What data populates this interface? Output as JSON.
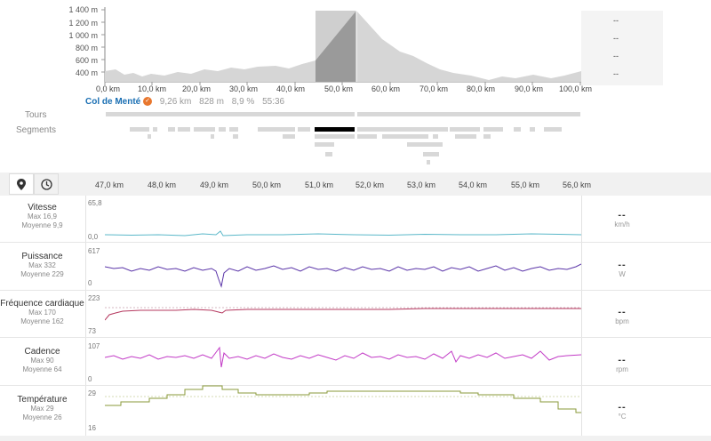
{
  "elevation": {
    "y_ticks": [
      "1 400 m",
      "1 200 m",
      "1 000 m",
      "800 m",
      "600 m",
      "400 m"
    ],
    "x_ticks": [
      "0,0 km",
      "10,0 km",
      "20,0 km",
      "30,0 km",
      "40,0 km",
      "50,0 km",
      "60,0 km",
      "70,0 km",
      "80,0 km",
      "90,0 km",
      "100,0 km"
    ],
    "side_values": [
      "--",
      "--",
      "--",
      "--"
    ]
  },
  "segment_info": {
    "name": "Col de Menté",
    "distance": "9,26 km",
    "elevation": "828 m",
    "grade": "8,9 %",
    "time": "55:36"
  },
  "rows": {
    "tours": "Tours",
    "segments": "Segments"
  },
  "toolbar": {
    "pin_icon": "map-pin-icon",
    "clock_icon": "clock-icon"
  },
  "zoom_axis": [
    "47,0 km",
    "48,0 km",
    "49,0 km",
    "50,0 km",
    "51,0 km",
    "52,0 km",
    "53,0 km",
    "54,0 km",
    "55,0 km",
    "56,0 km"
  ],
  "panels": [
    {
      "name": "Vitesse",
      "max": "Max 16,9",
      "avg": "Moyenne 9,9",
      "top": "65,8",
      "bottom": "0,0",
      "value": "--",
      "unit": "km/h",
      "color": "#5bb8c9"
    },
    {
      "name": "Puissance",
      "max": "Max 332",
      "avg": "Moyenne 229",
      "top": "617",
      "bottom": "0",
      "value": "--",
      "unit": "W",
      "color": "#5a34a8"
    },
    {
      "name": "Fréquence cardiaque",
      "max": "Max 170",
      "avg": "Moyenne 162",
      "top": "223",
      "bottom": "73",
      "value": "--",
      "unit": "bpm",
      "color": "#b5385f"
    },
    {
      "name": "Cadence",
      "max": "Max 90",
      "avg": "Moyenne 64",
      "top": "107",
      "bottom": "0",
      "value": "--",
      "unit": "rpm",
      "color": "#c23ac6"
    },
    {
      "name": "Température",
      "max": "Max 29",
      "avg": "Moyenne 26",
      "top": "29",
      "bottom": "16",
      "value": "--",
      "unit": "°C",
      "color": "#8a9a3a"
    }
  ]
}
